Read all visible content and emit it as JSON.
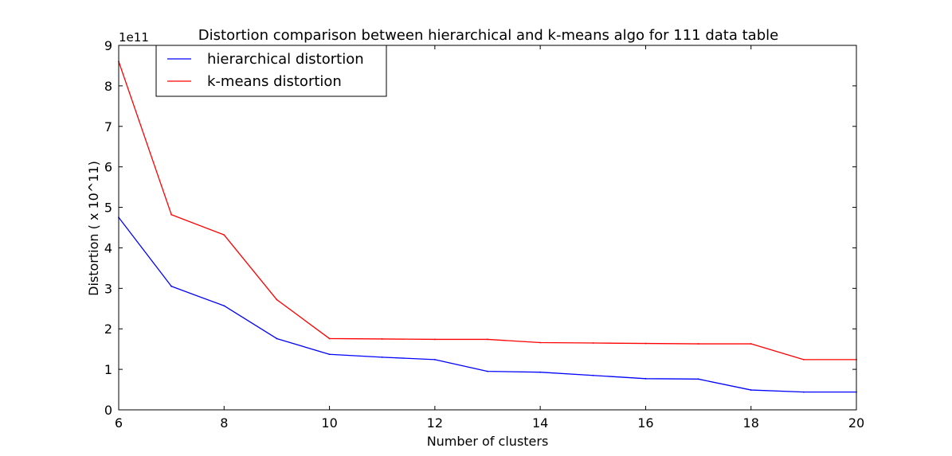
{
  "chart_data": {
    "type": "line",
    "title": "Distortion comparison between hierarchical and k-means algo for 111 data table",
    "xlabel": "Number of clusters",
    "ylabel": "Distortion ( x 10^11)",
    "y_offset_label": "1e11",
    "xlim": [
      6,
      20
    ],
    "ylim": [
      0,
      9
    ],
    "y_scale_multiplier": 100000000000,
    "x_ticks": [
      "6",
      "8",
      "10",
      "12",
      "14",
      "16",
      "18",
      "20"
    ],
    "y_ticks": [
      "0",
      "1",
      "2",
      "3",
      "4",
      "5",
      "6",
      "7",
      "8",
      "9"
    ],
    "grid": false,
    "legend_placement": "top-left",
    "x": [
      6,
      7,
      8,
      9,
      10,
      11,
      12,
      13,
      14,
      15,
      16,
      17,
      18,
      19,
      20
    ],
    "series": [
      {
        "name": "hierarchical distortion",
        "color": "#0000ff",
        "values": [
          4.75,
          3.05,
          2.57,
          1.76,
          1.37,
          1.3,
          1.24,
          0.95,
          0.93,
          0.85,
          0.77,
          0.76,
          0.49,
          0.44,
          0.44
        ]
      },
      {
        "name": "k-means distortion",
        "color": "#ff0000",
        "values": [
          8.6,
          4.82,
          4.32,
          2.72,
          1.76,
          1.75,
          1.74,
          1.74,
          1.66,
          1.65,
          1.64,
          1.63,
          1.63,
          1.24,
          1.24
        ]
      }
    ]
  }
}
